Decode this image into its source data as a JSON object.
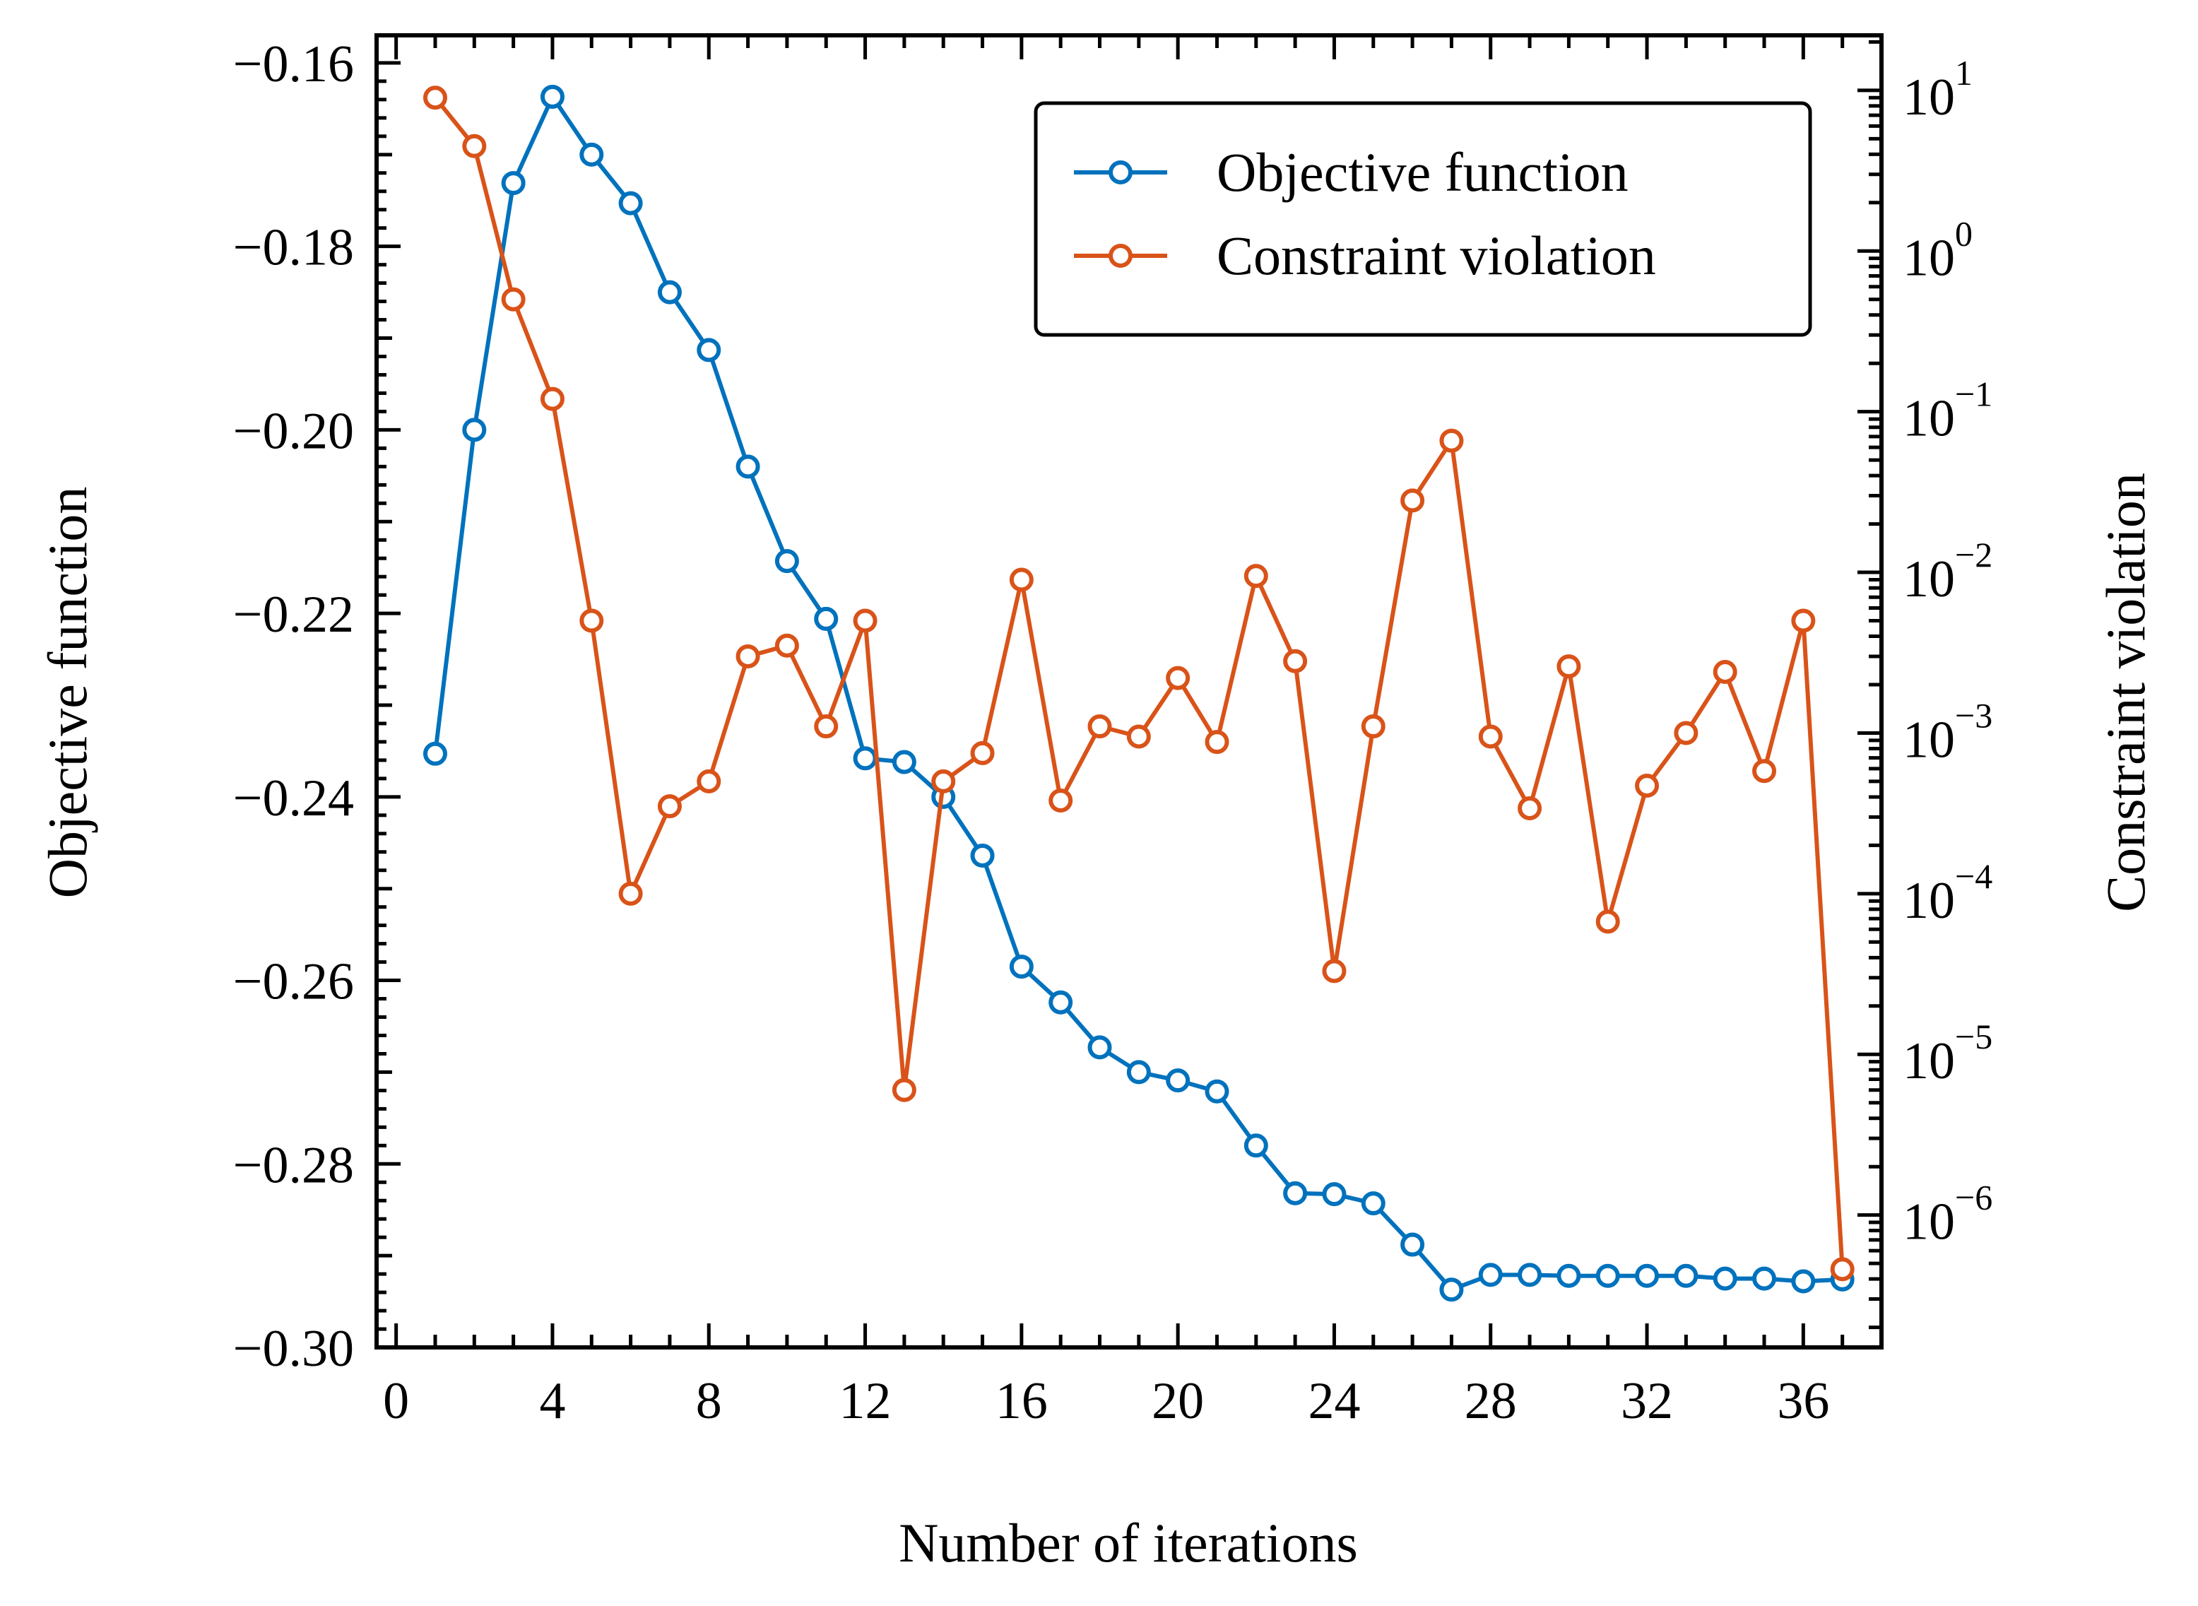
{
  "chart_data": {
    "type": "line",
    "xlabel": "Number of iterations",
    "xlim": [
      -0.5,
      38
    ],
    "xticks": [
      0,
      4,
      8,
      12,
      16,
      20,
      24,
      28,
      32,
      36
    ],
    "x": [
      1,
      2,
      3,
      4,
      5,
      6,
      7,
      8,
      9,
      10,
      11,
      12,
      13,
      14,
      15,
      16,
      17,
      18,
      19,
      20,
      21,
      22,
      23,
      24,
      25,
      26,
      27,
      28,
      29,
      30,
      31,
      32,
      33,
      34,
      35,
      36,
      37
    ],
    "left_axis": {
      "label": "Objective function",
      "ylim": [
        -0.3,
        -0.157
      ],
      "ticks": [
        -0.16,
        -0.18,
        -0.2,
        -0.22,
        -0.24,
        -0.26,
        -0.28,
        -0.3
      ],
      "tick_labels": [
        "−0.16",
        "−0.18",
        "−0.20",
        "−0.22",
        "−0.24",
        "−0.26",
        "−0.28",
        "−0.30"
      ]
    },
    "right_axis": {
      "label": "Constraint violation",
      "scale": "log",
      "ylim": [
        1.5e-07,
        22
      ],
      "ticks": [
        10.0,
        1.0,
        0.1,
        0.01,
        0.001,
        0.0001,
        1e-05,
        1e-06
      ],
      "tick_labels": [
        {
          "base": "10",
          "exp": "1"
        },
        {
          "base": "10",
          "exp": "0"
        },
        {
          "base": "10",
          "exp": "−1"
        },
        {
          "base": "10",
          "exp": "−2"
        },
        {
          "base": "10",
          "exp": "−3"
        },
        {
          "base": "10",
          "exp": "−4"
        },
        {
          "base": "10",
          "exp": "−5"
        },
        {
          "base": "10",
          "exp": "−6"
        }
      ]
    },
    "series": [
      {
        "name": "Objective function",
        "axis": "left",
        "color": "#0072BD",
        "values": [
          -0.2353,
          -0.2,
          -0.1731,
          -0.1637,
          -0.17,
          -0.1753,
          -0.185,
          -0.1913,
          -0.204,
          -0.2143,
          -0.2206,
          -0.2358,
          -0.2362,
          -0.24,
          -0.2464,
          -0.2585,
          -0.2624,
          -0.2673,
          -0.27,
          -0.2709,
          -0.2721,
          -0.278,
          -0.2832,
          -0.2833,
          -0.2843,
          -0.2888,
          -0.2937,
          -0.2921,
          -0.2921,
          -0.2922,
          -0.2922,
          -0.2922,
          -0.2922,
          -0.2925,
          -0.2925,
          -0.2928,
          -0.2926
        ]
      },
      {
        "name": "Constraint violation",
        "axis": "right",
        "color": "#D95319",
        "values": [
          9.0,
          4.5,
          0.5,
          0.12,
          0.005,
          0.0001,
          0.00035,
          0.0005,
          0.003,
          0.0035,
          0.0011,
          0.005,
          6e-06,
          0.0005,
          0.00075,
          0.009,
          0.00038,
          0.0011,
          0.00095,
          0.0022,
          0.00088,
          0.0095,
          0.0028,
          3.3e-05,
          0.0011,
          0.028,
          0.066,
          0.00095,
          0.00034,
          0.0026,
          6.7e-05,
          0.00047,
          0.001,
          0.0024,
          0.00058,
          0.005,
          4.6e-07
        ]
      }
    ],
    "legend": {
      "placement": "upper-right"
    },
    "grid": false
  }
}
